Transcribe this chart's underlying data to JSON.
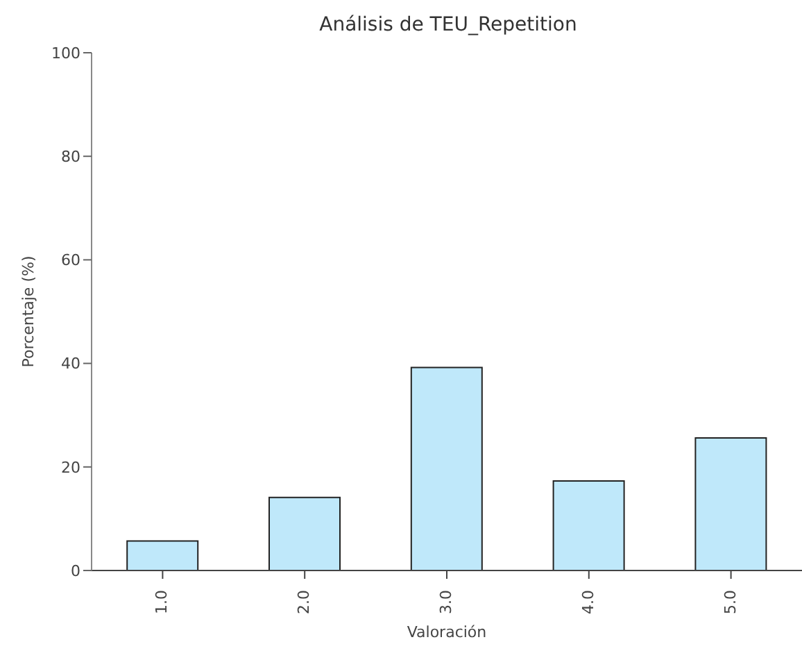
{
  "chart_data": {
    "type": "bar",
    "title": "Análisis de TEU_Repetition",
    "xlabel": "Valoración",
    "ylabel": "Porcentaje (%)",
    "categories": [
      "1.0",
      "2.0",
      "3.0",
      "4.0",
      "5.0"
    ],
    "values": [
      5.7,
      14.1,
      39.2,
      17.3,
      25.6
    ],
    "color": "#bfe8fa",
    "ylim": [
      0,
      100
    ],
    "yticks": [
      0,
      20,
      40,
      60,
      80,
      100
    ],
    "grid": false
  }
}
